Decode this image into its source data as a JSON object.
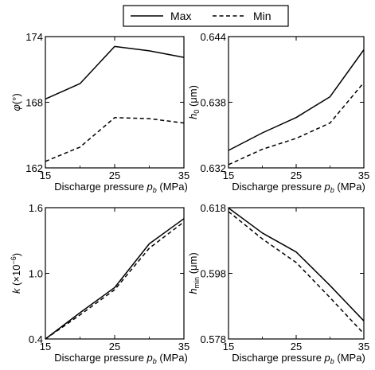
{
  "legend": {
    "items": [
      {
        "label": "Max",
        "style": "solid"
      },
      {
        "label": "Min",
        "style": "dashed"
      }
    ],
    "placement": "top-center"
  },
  "chart_data": [
    {
      "type": "line",
      "ylabel": {
        "main": "φ",
        "sub": "",
        "sup": "",
        "unit": "(°)"
      },
      "xlabel": {
        "main": "Discharge pressure ",
        "var": "p",
        "sub": "b",
        "unit": " (MPa)"
      },
      "x": [
        15,
        20,
        25,
        30,
        35
      ],
      "xlim": [
        15,
        35
      ],
      "ylim": [
        162,
        174
      ],
      "xticks": [
        "15",
        "25",
        "35"
      ],
      "yticks": [
        "162",
        "168",
        "174"
      ],
      "series": [
        {
          "name": "Max",
          "style": "solid",
          "values": [
            168.3,
            169.7,
            173.1,
            172.7,
            172.1
          ]
        },
        {
          "name": "Min",
          "style": "dashed",
          "values": [
            162.6,
            163.9,
            166.6,
            166.5,
            166.1
          ]
        }
      ],
      "grid": false
    },
    {
      "type": "line",
      "ylabel": {
        "main": "h",
        "sub": "0",
        "sup": "",
        "unit": " (μm)"
      },
      "xlabel": {
        "main": "Discharge pressure ",
        "var": "p",
        "sub": "b",
        "unit": " (MPa)"
      },
      "x": [
        15,
        20,
        25,
        30,
        35
      ],
      "xlim": [
        15,
        35
      ],
      "ylim": [
        0.632,
        0.644
      ],
      "xticks": [
        "15",
        "25",
        "35"
      ],
      "yticks": [
        "0.632",
        "0.638",
        "0.644"
      ],
      "series": [
        {
          "name": "Max",
          "style": "solid",
          "values": [
            0.6336,
            0.6352,
            0.6366,
            0.6385,
            0.6428
          ]
        },
        {
          "name": "Min",
          "style": "dashed",
          "values": [
            0.6323,
            0.6337,
            0.6347,
            0.6361,
            0.6398
          ]
        }
      ],
      "grid": false
    },
    {
      "type": "line",
      "ylabel": {
        "main": "k",
        "sub": "",
        "sup": "−6",
        "unit": " (×10",
        "unit_end": ")"
      },
      "xlabel": {
        "main": "Discharge pressure ",
        "var": "p",
        "sub": "b",
        "unit": " (MPa)"
      },
      "x": [
        15,
        20,
        25,
        30,
        35
      ],
      "xlim": [
        15,
        35
      ],
      "ylim": [
        0.4,
        1.6
      ],
      "xticks": [
        "15",
        "25",
        "35"
      ],
      "yticks": [
        "0.4",
        "1.0",
        "1.6"
      ],
      "series": [
        {
          "name": "Max",
          "style": "solid",
          "values": [
            0.4,
            0.64,
            0.87,
            1.27,
            1.5
          ]
        },
        {
          "name": "Min",
          "style": "dashed",
          "values": [
            0.4,
            0.62,
            0.85,
            1.23,
            1.47
          ]
        }
      ],
      "grid": false
    },
    {
      "type": "line",
      "ylabel": {
        "main": "h",
        "sub": "min",
        "sup": "",
        "unit": " (μm)"
      },
      "xlabel": {
        "main": "Discharge pressure ",
        "var": "p",
        "sub": "b",
        "unit": " (MPa)"
      },
      "x": [
        15,
        20,
        25,
        30,
        35
      ],
      "xlim": [
        15,
        35
      ],
      "ylim": [
        0.578,
        0.618
      ],
      "xticks": [
        "15",
        "25",
        "35"
      ],
      "yticks": [
        "0.578",
        "0.598",
        "0.618"
      ],
      "series": [
        {
          "name": "Max",
          "style": "solid",
          "values": [
            0.6179,
            0.6103,
            0.6045,
            0.5943,
            0.5835
          ]
        },
        {
          "name": "Min",
          "style": "dashed",
          "values": [
            0.6168,
            0.6085,
            0.6013,
            0.5906,
            0.5796
          ]
        }
      ],
      "grid": false
    }
  ]
}
